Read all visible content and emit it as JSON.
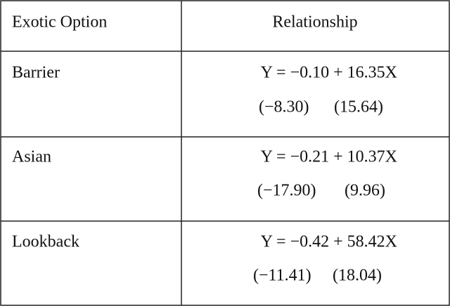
{
  "table": {
    "header": [
      "Exotic Option",
      "Relationship"
    ],
    "rows": [
      {
        "option": "Barrier",
        "equation": "Y = −0.10 + 16.35X",
        "tstats": [
          "(−8.30)",
          "(15.64)"
        ]
      },
      {
        "option": "Asian",
        "equation": "Y = −0.21 + 10.37X",
        "tstats": [
          "(−17.90)",
          "(9.96)"
        ]
      },
      {
        "option": "Lookback",
        "equation": "Y = −0.42 + 58.42X",
        "tstats": [
          "(−11.41)",
          "(18.04)"
        ]
      }
    ]
  }
}
